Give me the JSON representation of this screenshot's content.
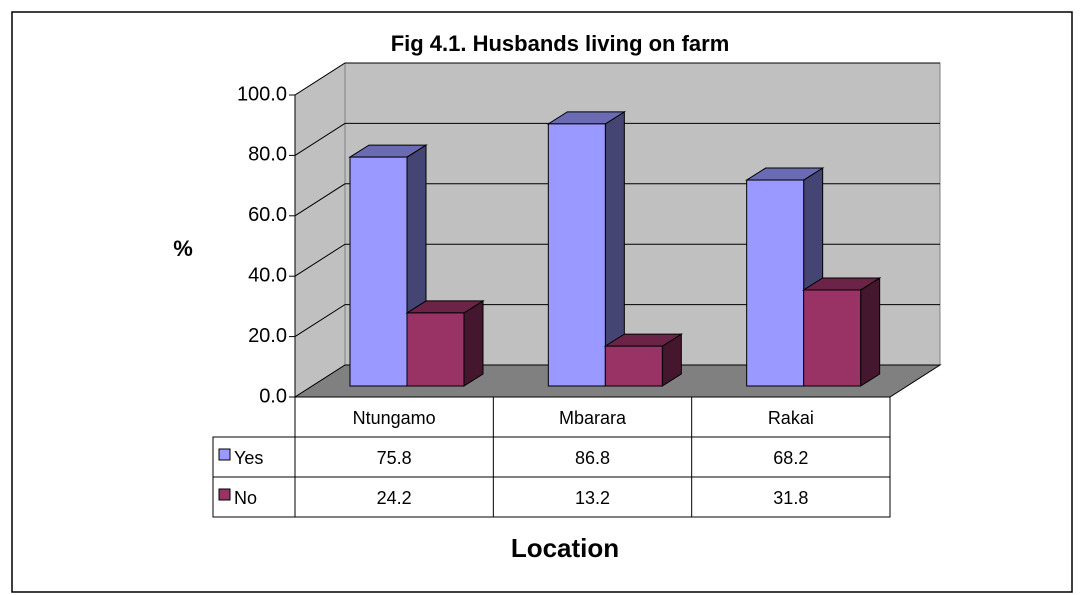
{
  "chart_data": {
    "type": "bar3d",
    "title": "Fig 4.1. Husbands living on farm",
    "y_label": "%",
    "x_label": "Location",
    "categories": [
      "Ntungamo",
      "Mbarara",
      "Rakai"
    ],
    "series": [
      {
        "name": "Yes",
        "color": "#9999ff",
        "values": [
          75.8,
          86.8,
          68.2
        ]
      },
      {
        "name": "No",
        "color": "#993366",
        "values": [
          24.2,
          13.2,
          31.8
        ]
      }
    ],
    "ylim": [
      0,
      100
    ],
    "yticks": [
      {
        "value": 0,
        "label": "0.0"
      },
      {
        "value": 20,
        "label": "20.0"
      },
      {
        "value": 40,
        "label": "40.0"
      },
      {
        "value": 60,
        "label": "60.0"
      },
      {
        "value": 80,
        "label": "80.0"
      },
      {
        "value": 100,
        "label": "100.0"
      }
    ],
    "grid": true
  }
}
